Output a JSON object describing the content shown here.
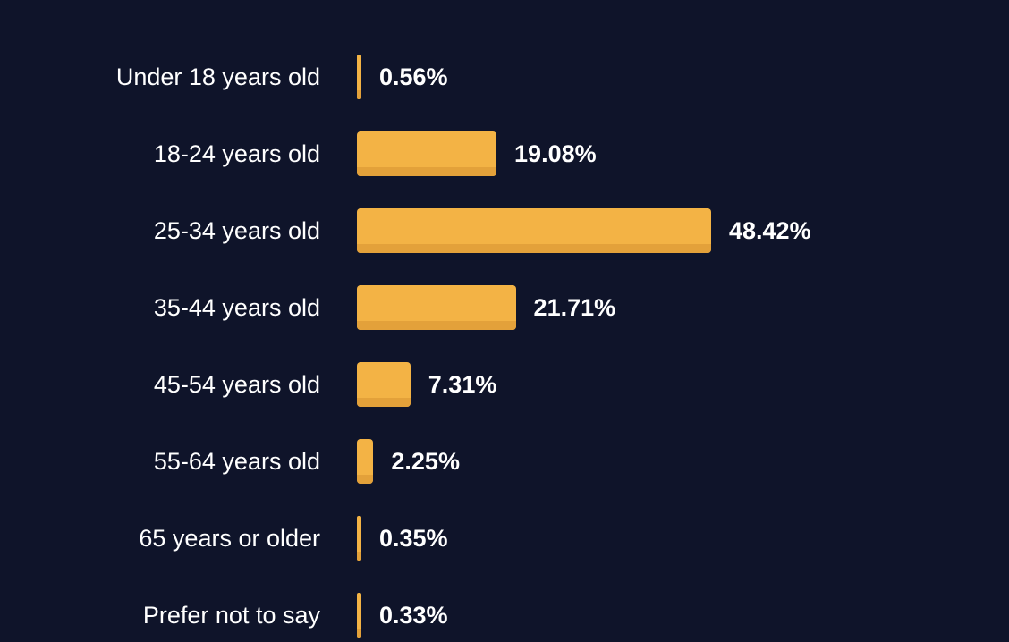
{
  "colors": {
    "background": "#0f142a",
    "bar": "#f3b345",
    "bar_shade": "#e3a13a",
    "label": "#ffffff",
    "value_label": "#ffffff"
  },
  "chart_data": {
    "type": "bar",
    "orientation": "horizontal",
    "categories": [
      "Under 18 years old",
      "18-24 years old",
      "25-34 years old",
      "35-44 years old",
      "45-54 years old",
      "55-64 years old",
      "65 years or older",
      "Prefer not to say"
    ],
    "values": [
      0.56,
      19.08,
      48.42,
      21.71,
      7.31,
      2.25,
      0.35,
      0.33
    ],
    "value_labels": [
      "0.56%",
      "19.08%",
      "48.42%",
      "21.71%",
      "7.31%",
      "2.25%",
      "0.35%",
      "0.33%"
    ],
    "unit": "%",
    "title": "",
    "xlabel": "",
    "ylabel": "",
    "xlim": [
      0,
      48.42
    ],
    "grid": false,
    "legend": "none"
  }
}
